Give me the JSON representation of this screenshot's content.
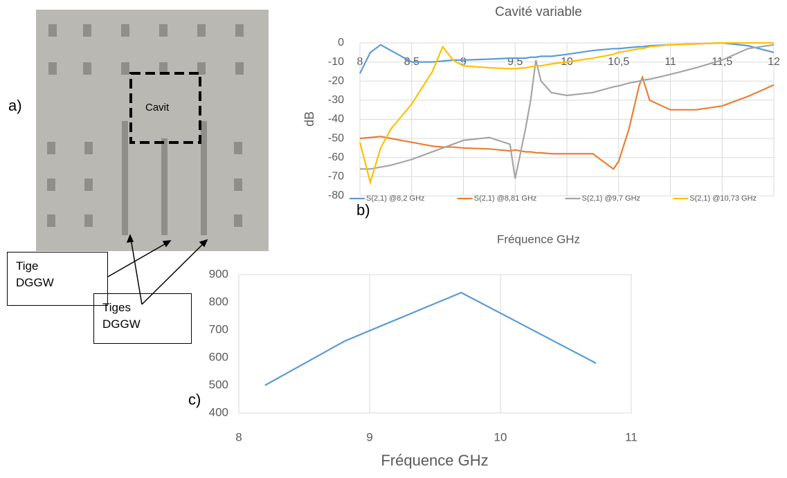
{
  "figure": {
    "panel_a": "a)",
    "panel_b": "b)",
    "panel_c": "c)",
    "cavity_label": "Cavit",
    "rod_label": "Tige\nDGGW",
    "rods_label": "Tiges\nDGGW"
  },
  "chart_data": [
    {
      "type": "line",
      "title": "Cavité variable",
      "x_label": "Fréquence GHz",
      "y_label": "dB",
      "x": [
        8,
        8.1,
        8.2,
        8.3,
        8.5,
        8.7,
        8.8,
        8.9,
        9.0,
        9.25,
        9.45,
        9.5,
        9.6,
        9.65,
        9.7,
        9.75,
        9.85,
        10,
        10.25,
        10.45,
        10.5,
        10.6,
        10.7,
        10.73,
        10.8,
        11,
        11.25,
        11.5,
        11.75,
        12
      ],
      "series": [
        {
          "name": "S(2,1) @8,2 GHz",
          "color": "#5b9bd5",
          "values": [
            -16,
            -5,
            -1,
            -4,
            -10,
            -10,
            -9.5,
            -9,
            -9,
            -8.5,
            -8,
            -8,
            -8,
            -7.5,
            -7.5,
            -7,
            -7,
            -6,
            -4,
            -3,
            -3,
            -2.5,
            -2,
            -2,
            -1.5,
            -1,
            -0.5,
            0,
            -1.5,
            -5
          ]
        },
        {
          "name": "S(2,1) @8,81 GHz",
          "color": "#ed7d31",
          "values": [
            -50,
            -49.5,
            -49,
            -50,
            -52,
            -54,
            -54.5,
            -54.5,
            -55,
            -55.5,
            -56.5,
            -56,
            -57,
            -57,
            -57.5,
            -57.5,
            -58,
            -58,
            -58,
            -66,
            -62,
            -45,
            -22,
            -18,
            -30,
            -35,
            -35,
            -33,
            -28,
            -22
          ]
        },
        {
          "name": "S(2,1) @9,7 GHz",
          "color": "#a5a5a5",
          "values": [
            -66,
            -66,
            -65,
            -64,
            -61,
            -57,
            -55,
            -53,
            -51,
            -49.5,
            -53,
            -71,
            -45,
            -30,
            -9,
            -20,
            -26,
            -27.5,
            -26,
            -23,
            -22.5,
            -21,
            -20,
            -19.5,
            -19,
            -16.5,
            -13,
            -9,
            -3,
            -1
          ]
        },
        {
          "name": "S(2,1) @10,73 GHz",
          "color": "#ffc000",
          "values": [
            -52,
            -73,
            -55,
            -45,
            -32,
            -15,
            -2,
            -9,
            -12,
            -13,
            -13.5,
            -13.5,
            -13,
            -12.5,
            -12,
            -12,
            -11,
            -10,
            -8,
            -6,
            -5,
            -4,
            -3,
            -3,
            -2,
            -1,
            -0.5,
            0,
            0,
            0
          ]
        }
      ],
      "xlim": [
        8,
        12
      ],
      "xticks": [
        8,
        {
          "value": 8.5,
          "label": "8,5"
        },
        9,
        {
          "value": 9.5,
          "label": "9,5"
        },
        10,
        {
          "value": 10.5,
          "label": "10,5"
        },
        11,
        {
          "value": 11.5,
          "label": "11,5"
        },
        12
      ],
      "ylim": [
        -80,
        0
      ],
      "yticks": [
        0,
        -10,
        -20,
        -30,
        -40,
        -50,
        -60,
        -70,
        -80
      ],
      "grid": true,
      "legend": "bottom"
    },
    {
      "type": "line",
      "x_label": "Fréquence GHz",
      "x": [
        8.2,
        8.81,
        9.7,
        10.73
      ],
      "values": [
        500,
        660,
        835,
        580
      ],
      "color": "#5b9bd5",
      "xlim": [
        8,
        11
      ],
      "xticks": [
        8,
        9,
        10,
        11
      ],
      "ylim": [
        400,
        900
      ],
      "yticks": [
        400,
        500,
        600,
        700,
        800,
        900
      ],
      "grid": true
    }
  ]
}
